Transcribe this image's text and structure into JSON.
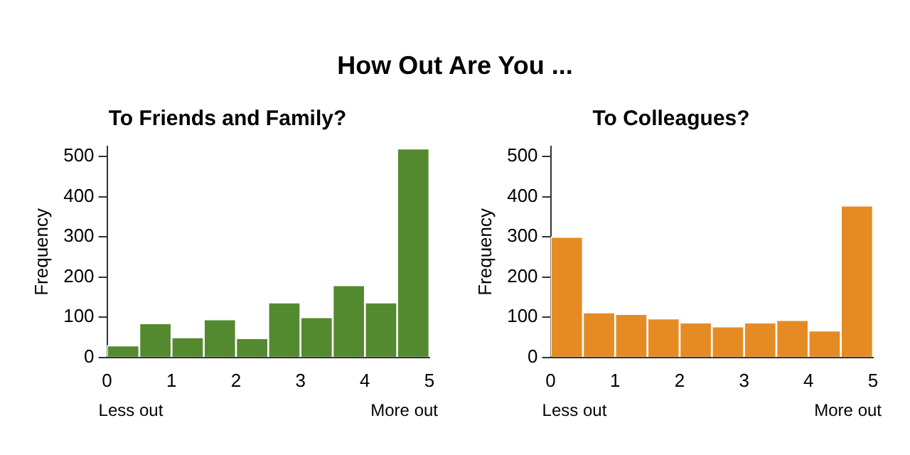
{
  "chart_data": [
    {
      "type": "other",
      "title": "How Out Are You ..."
    },
    {
      "type": "histogram",
      "title": "To Friends and Family?",
      "ylabel": "Frequency",
      "bins": [
        0,
        0.5,
        1,
        1.5,
        2,
        2.5,
        3,
        3.5,
        4,
        4.5,
        5
      ],
      "values": [
        30,
        85,
        50,
        95,
        48,
        137,
        100,
        180,
        137,
        520
      ],
      "color": "#548a2f",
      "xlim": [
        0,
        5
      ],
      "xticks": [
        0,
        1,
        2,
        3,
        4,
        5
      ],
      "ylim": [
        0,
        525
      ],
      "yticks": [
        0,
        100,
        200,
        300,
        400,
        500
      ],
      "grid": false,
      "legend": false,
      "annotations": [
        "Less out",
        "More out"
      ]
    },
    {
      "type": "histogram",
      "title": "To Colleagues?",
      "ylabel": "Frequency",
      "bins": [
        0,
        0.5,
        1,
        1.5,
        2,
        2.5,
        3,
        3.5,
        4,
        4.5,
        5
      ],
      "values": [
        300,
        112,
        108,
        97,
        87,
        77,
        87,
        93,
        67,
        378
      ],
      "color": "#e68b24",
      "xlim": [
        0,
        5
      ],
      "xticks": [
        0,
        1,
        2,
        3,
        4,
        5
      ],
      "ylim": [
        0,
        525
      ],
      "yticks": [
        0,
        100,
        200,
        300,
        400,
        500
      ],
      "grid": false,
      "legend": false,
      "annotations": [
        "Less out",
        "More out"
      ]
    }
  ]
}
